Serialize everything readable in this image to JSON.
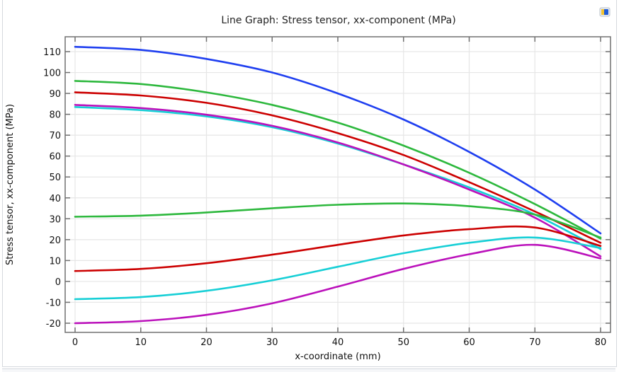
{
  "toolbar": {
    "export_icon": "image-export-icon"
  },
  "chart_data": {
    "type": "line",
    "title": "Line Graph: Stress tensor, xx-component (MPa)",
    "xlabel": "x-coordinate (mm)",
    "ylabel": "Stress tensor, xx-component (MPa)",
    "xlim": [
      -1.5,
      81.5
    ],
    "ylim": [
      -24,
      115
    ],
    "grid": true,
    "legend": "none",
    "xticks": [
      0,
      10,
      20,
      30,
      40,
      50,
      60,
      70,
      80
    ],
    "yticks": [
      -20,
      -10,
      0,
      10,
      20,
      30,
      40,
      50,
      60,
      70,
      80,
      90,
      100,
      110
    ],
    "x": [
      0,
      10,
      20,
      30,
      40,
      50,
      60,
      70,
      80
    ],
    "series": [
      {
        "name": "blue",
        "color": "#1f3ff0",
        "values": [
          112.3,
          110.8,
          106.5,
          100,
          90,
          77.5,
          62,
          44,
          23
        ]
      },
      {
        "name": "green-upper",
        "color": "#2db83d",
        "values": [
          96,
          94.5,
          90.5,
          84.5,
          76,
          65,
          52,
          37,
          20.5
        ]
      },
      {
        "name": "red-upper",
        "color": "#cc0000",
        "values": [
          90.5,
          89,
          85.5,
          79.5,
          71,
          60.5,
          47.5,
          33.5,
          18.5
        ]
      },
      {
        "name": "cyan-upper",
        "color": "#17cfd6",
        "values": [
          83.5,
          82,
          79,
          73.8,
          66,
          56,
          45,
          32,
          15.5
        ]
      },
      {
        "name": "magenta-upper",
        "color": "#bb11bb",
        "values": [
          84.5,
          83,
          79.8,
          74.5,
          66.5,
          56,
          44,
          30.5,
          12
        ]
      },
      {
        "name": "green-lower",
        "color": "#2db83d",
        "values": [
          31,
          31.5,
          33,
          35,
          36.7,
          37.3,
          36,
          32,
          21
        ]
      },
      {
        "name": "red-lower",
        "color": "#cc0000",
        "values": [
          5,
          6,
          8.7,
          12.8,
          17.5,
          22,
          25,
          25.8,
          17
        ]
      },
      {
        "name": "cyan-lower",
        "color": "#17cfd6",
        "values": [
          -8.5,
          -7.5,
          -4.5,
          0.5,
          7,
          13.5,
          18.5,
          21,
          16
        ]
      },
      {
        "name": "magenta-lower",
        "color": "#bb11bb",
        "values": [
          -20,
          -19,
          -16,
          -10.5,
          -2.5,
          6,
          13,
          17.5,
          11
        ]
      }
    ]
  }
}
